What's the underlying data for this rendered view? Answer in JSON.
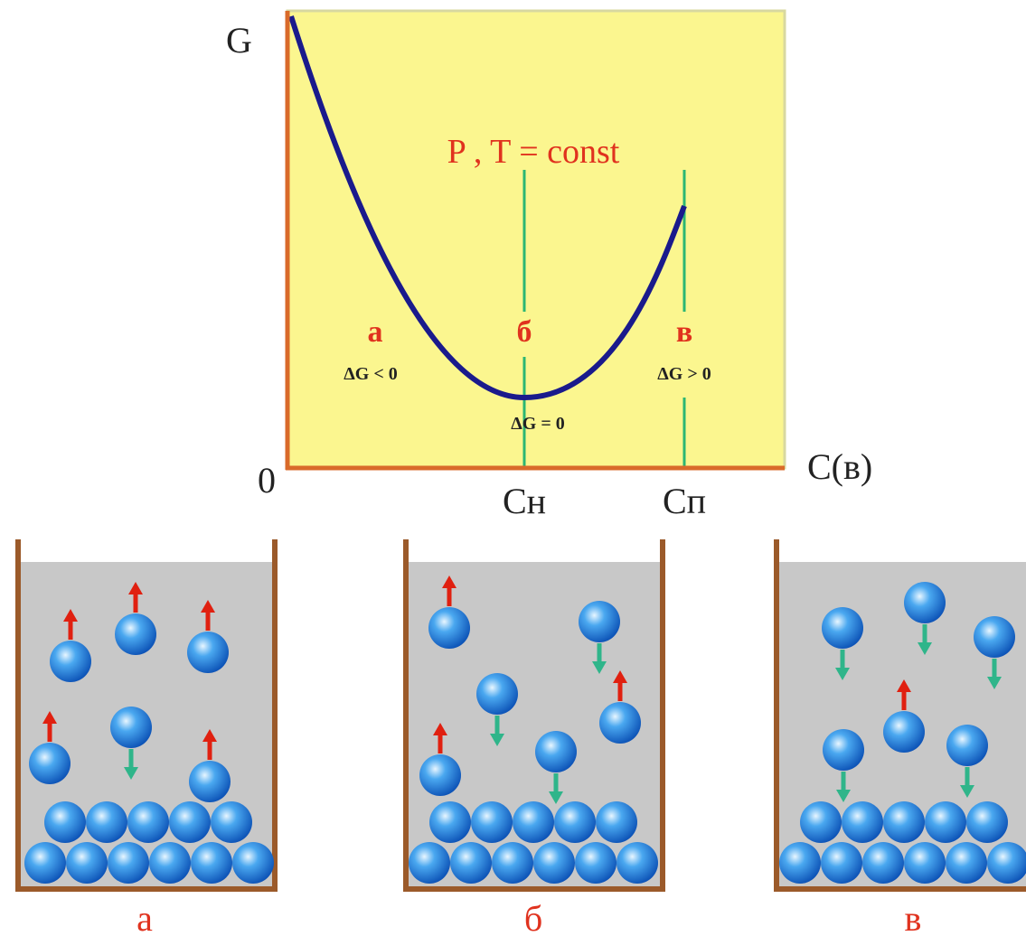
{
  "graph": {
    "y_axis_label": "G",
    "origin_label": "0",
    "x_axis_label": "C(в)",
    "x_marks": [
      "Сн",
      "Сп"
    ],
    "condition": "P , T = const",
    "points": [
      {
        "label": "а",
        "condition": "ΔG < 0"
      },
      {
        "label": "б",
        "condition": "ΔG = 0"
      },
      {
        "label": "в",
        "condition": "ΔG > 0"
      }
    ]
  },
  "panels": [
    "а",
    "б",
    "в"
  ]
}
